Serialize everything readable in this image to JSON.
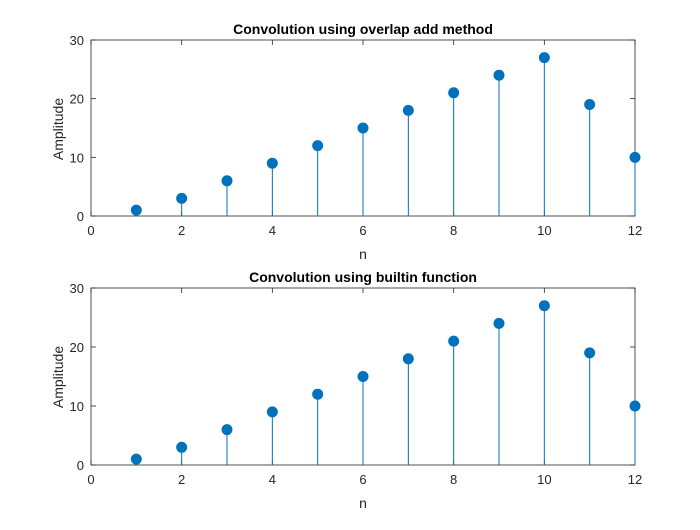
{
  "figure": {
    "stem_color": "#0072BD",
    "axes_color": "#262626",
    "grid": false
  },
  "chart_data": [
    {
      "type": "stem",
      "title": "Convolution using overlap add method",
      "xlabel": "n",
      "ylabel": "Amplitude",
      "xlim": [
        0,
        12
      ],
      "ylim": [
        0,
        30
      ],
      "xticks": [
        0,
        2,
        4,
        6,
        8,
        10,
        12
      ],
      "yticks": [
        0,
        10,
        20,
        30
      ],
      "x": [
        1,
        2,
        3,
        4,
        5,
        6,
        7,
        8,
        9,
        10,
        11,
        12
      ],
      "y": [
        1,
        3,
        6,
        9,
        12,
        15,
        18,
        21,
        24,
        27,
        19,
        10
      ]
    },
    {
      "type": "stem",
      "title": "Convolution using builtin function",
      "xlabel": "n",
      "ylabel": "Amplitude",
      "xlim": [
        0,
        12
      ],
      "ylim": [
        0,
        30
      ],
      "xticks": [
        0,
        2,
        4,
        6,
        8,
        10,
        12
      ],
      "yticks": [
        0,
        10,
        20,
        30
      ],
      "x": [
        1,
        2,
        3,
        4,
        5,
        6,
        7,
        8,
        9,
        10,
        11,
        12
      ],
      "y": [
        1,
        3,
        6,
        9,
        12,
        15,
        18,
        21,
        24,
        27,
        19,
        10
      ]
    }
  ]
}
